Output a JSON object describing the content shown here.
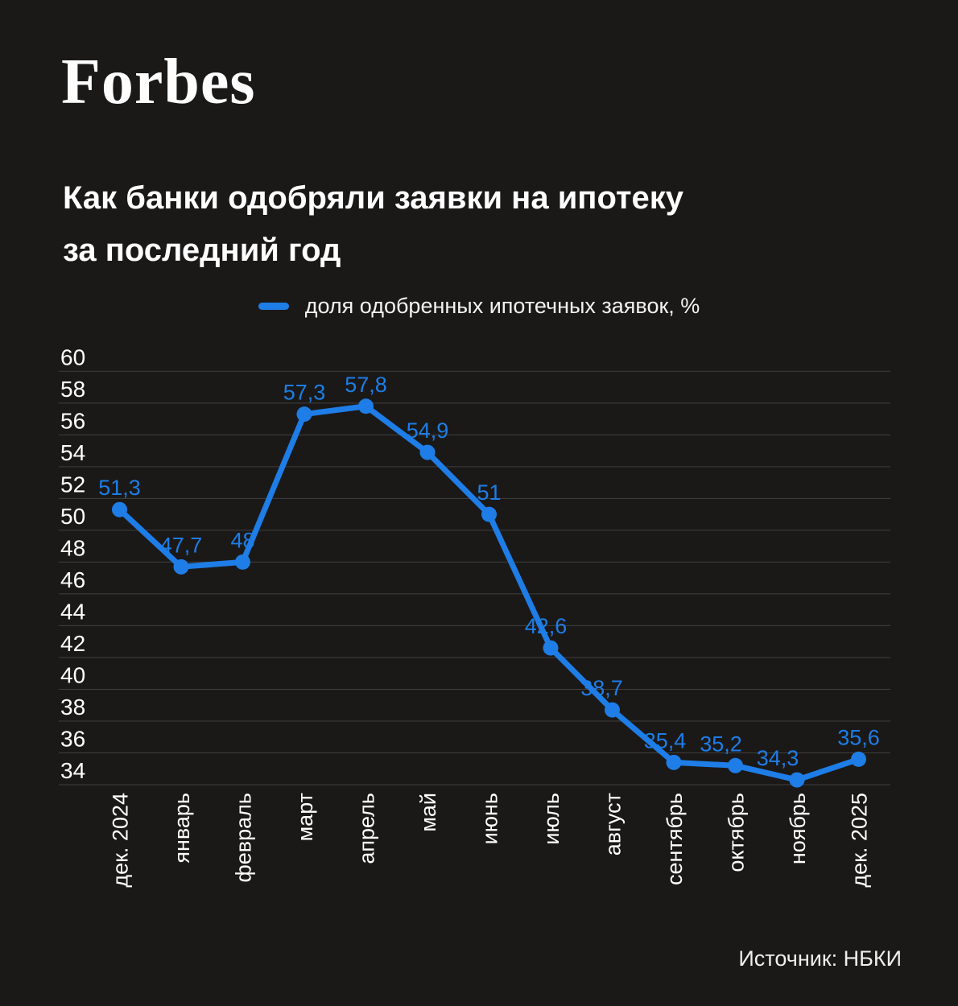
{
  "logo": "Forbes",
  "title": {
    "line1": "Как банки одобряли заявки на ипотеку",
    "line2": "за последний год"
  },
  "legend": {
    "label": "доля одобренных ипотечных заявок, %"
  },
  "source": "Источник: НБКИ",
  "colors": {
    "background": "#1a1918",
    "accent": "#1e7de6",
    "text": "#ffffff",
    "grid": "rgba(255,255,255,0.17)"
  },
  "chart_data": {
    "type": "line",
    "title": "Как банки одобряли заявки на ипотеку за последний год",
    "series_name": "доля одобренных ипотечных заявок, %",
    "categories": [
      "дек. 2024",
      "январь",
      "февраль",
      "март",
      "апрель",
      "май",
      "июнь",
      "июль",
      "август",
      "сентябрь",
      "октябрь",
      "ноябрь",
      "дек. 2025"
    ],
    "values": [
      51.3,
      47.7,
      48,
      57.3,
      57.8,
      54.9,
      51,
      42.6,
      38.7,
      35.4,
      35.2,
      34.3,
      35.6
    ],
    "value_labels": [
      "51,3",
      "47,7",
      "48",
      "57,3",
      "57,8",
      "54,9",
      "51",
      "42,6",
      "38,7",
      "35,4",
      "35,2",
      "34,3",
      "35,6"
    ],
    "ylim": [
      34,
      60
    ],
    "ytick_step": 2,
    "grid": true,
    "legend_position": "top-center",
    "x_labels_rotated": true,
    "label_dx": [
      0,
      0,
      0,
      0,
      0,
      0,
      0,
      -6,
      -13,
      -11,
      -18,
      -24,
      0
    ],
    "source": "НБКИ"
  }
}
